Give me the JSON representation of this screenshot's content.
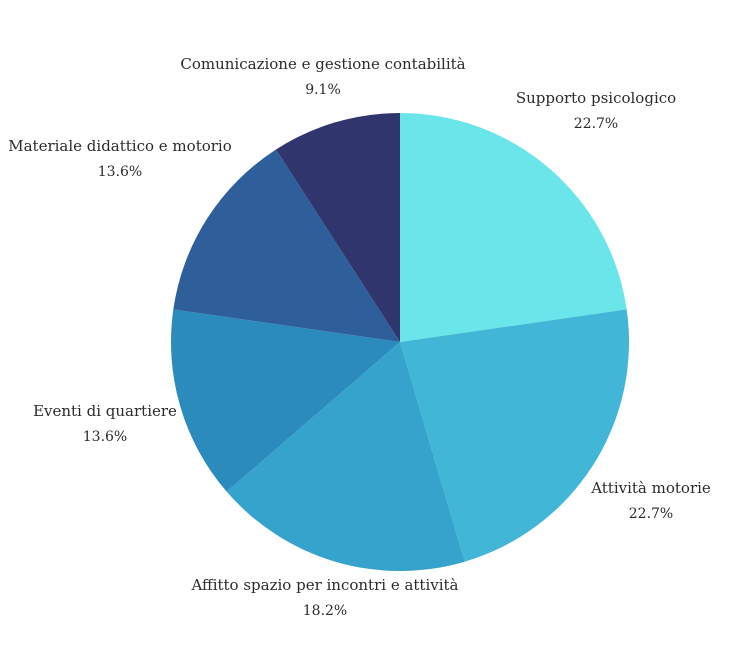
{
  "chart_data": {
    "type": "pie",
    "start_angle_deg": 0,
    "direction": "clockwise",
    "slices": [
      {
        "label": "Supporto psicologico",
        "value": 22.7,
        "pct_text": "22.7%",
        "color": "#6ae5e9"
      },
      {
        "label": "Attività motorie",
        "value": 22.7,
        "pct_text": "22.7%",
        "color": "#41b6d7"
      },
      {
        "label": "Affitto spazio per incontri e attività",
        "value": 18.2,
        "pct_text": "18.2%",
        "color": "#35a3cb"
      },
      {
        "label": "Eventi di quartiere",
        "value": 13.6,
        "pct_text": "13.6%",
        "color": "#2b8bbd"
      },
      {
        "label": "Materiale didattico e motorio",
        "value": 13.6,
        "pct_text": "13.6%",
        "color": "#2e5f9a"
      },
      {
        "label": "Comunicazione e gestione contabilità",
        "value": 9.1,
        "pct_text": "9.1%",
        "color": "#31356e"
      }
    ],
    "legend": "none",
    "title": ""
  }
}
